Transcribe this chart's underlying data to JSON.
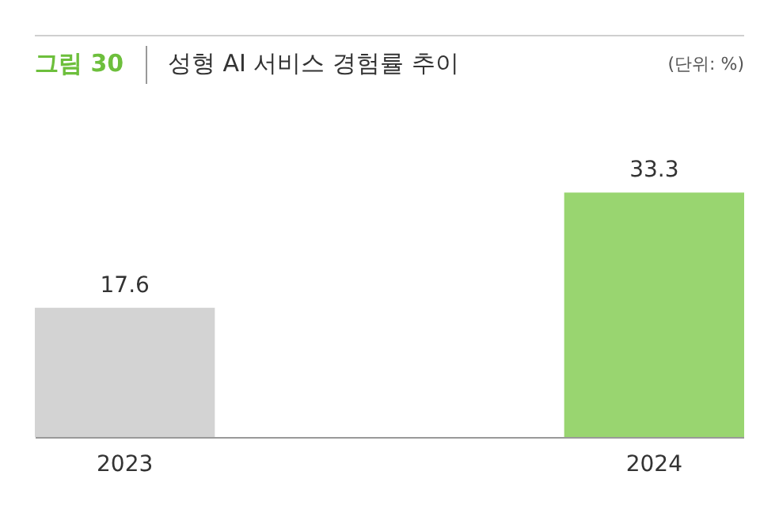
{
  "chart_data": {
    "type": "bar",
    "title": "성형 AI 서비스 경험률 추이",
    "annotations": [
      "그림 30",
      "(단위: %)"
    ],
    "categories": [
      "2023",
      "2024"
    ],
    "values": [
      17.6,
      33.3
    ],
    "colors": [
      "#d3d3d3",
      "#99d570"
    ],
    "data_labels": true,
    "grid": false,
    "legend": false
  }
}
